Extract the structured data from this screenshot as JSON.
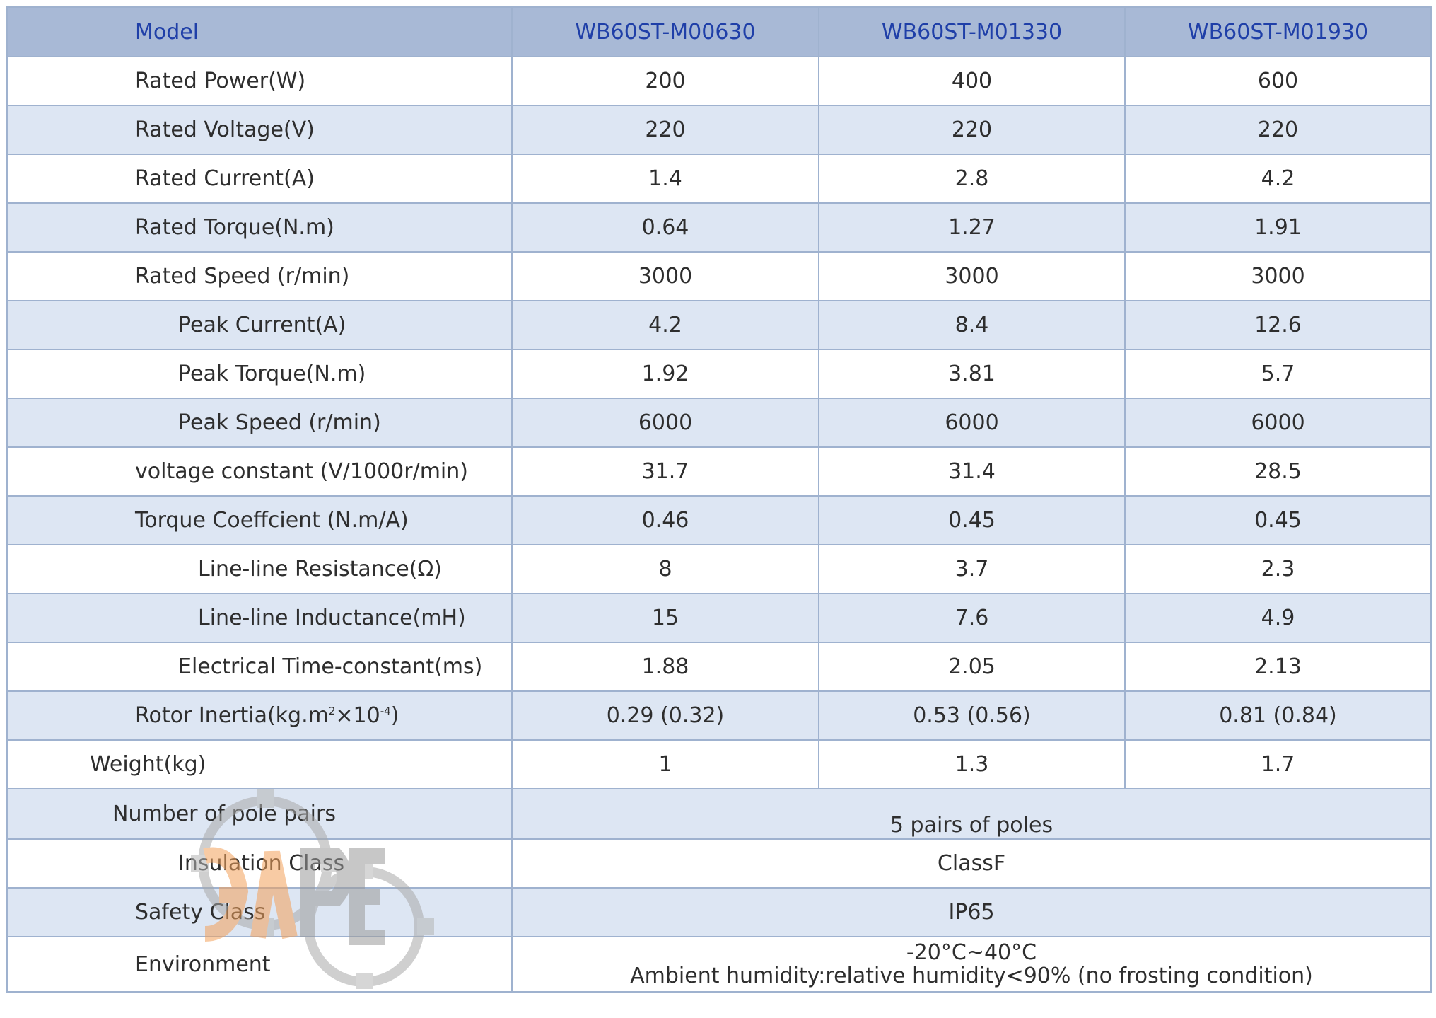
{
  "table": {
    "headers": [
      "Model",
      "WB60ST-M00630",
      "WB60ST-M01330",
      "WB60ST-M01930"
    ],
    "rows": [
      {
        "label": "Rated Power(W)",
        "values": [
          "200",
          "400",
          "600"
        ]
      },
      {
        "label": "Rated Voltage(V)",
        "values": [
          "220",
          "220",
          "220"
        ]
      },
      {
        "label": "Rated Current(A)",
        "values": [
          "1.4",
          "2.8",
          "4.2"
        ]
      },
      {
        "label": "Rated Torque(N.m)",
        "values": [
          "0.64",
          "1.27",
          "1.91"
        ]
      },
      {
        "label": "Rated Speed (r/min)",
        "values": [
          "3000",
          "3000",
          "3000"
        ]
      },
      {
        "label": "Peak Current(A)",
        "values": [
          "4.2",
          "8.4",
          "12.6"
        ]
      },
      {
        "label": "Peak Torque(N.m)",
        "values": [
          "1.92",
          "3.81",
          "5.7"
        ]
      },
      {
        "label": "Peak Speed (r/min)",
        "values": [
          "6000",
          "6000",
          "6000"
        ]
      },
      {
        "label": "voltage constant (V/1000r/min)",
        "values": [
          "31.7",
          "31.4",
          "28.5"
        ]
      },
      {
        "label": "Torque Coeffcient (N.m/A)",
        "values": [
          "0.46",
          "0.45",
          "0.45"
        ]
      },
      {
        "label": "Line-line Resistance(Ω)",
        "values": [
          "8",
          "3.7",
          "2.3"
        ]
      },
      {
        "label": "Line-line Inductance(mH)",
        "values": [
          "15",
          "7.6",
          "4.9"
        ]
      },
      {
        "label": "Electrical Time-constant(ms)",
        "values": [
          "1.88",
          "2.05",
          "2.13"
        ]
      },
      {
        "label_main": "Rotor Inertia(kg.m",
        "label_sup1": "2",
        "label_mid": "×10",
        "label_sup2": "-4",
        "label_end": ")",
        "values": [
          "0.29 (0.32)",
          "0.53 (0.56)",
          "0.81 (0.84)"
        ]
      },
      {
        "label": "Weight(kg)",
        "values": [
          "1",
          "1.3",
          "1.7"
        ]
      }
    ],
    "merged_rows": [
      {
        "label": "Number of pole pairs",
        "value": "5 pairs of poles"
      },
      {
        "label": "Insulation Class",
        "value": "ClassF"
      },
      {
        "label": "Safety Class",
        "value": "IP65"
      },
      {
        "label": "Environment",
        "value_line1": "-20°C~40°C",
        "value_line2": "Ambient humidity:relative humidity<90% (no frosting condition)"
      }
    ]
  },
  "colors": {
    "header_bg": "#a8b9d6",
    "header_text": "#1f3fa8",
    "row_alt_bg": "#dde6f3",
    "border": "#9fb2cf",
    "watermark_orange": "#f3a15a",
    "watermark_gray": "#8f8f8f"
  },
  "watermark": {
    "icon": "gear-logo-icon",
    "text": "ЭЛРЕ"
  }
}
